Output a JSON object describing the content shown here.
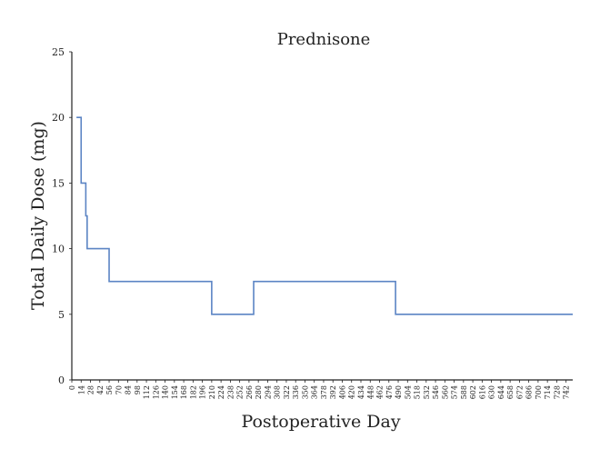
{
  "chart_data": {
    "type": "line",
    "title": "Prednisone",
    "xlabel": "Postoperative Day",
    "ylabel": "Total Daily Dose (mg)",
    "xlim": [
      0,
      752
    ],
    "ylim": [
      0,
      25
    ],
    "yticks": [
      0,
      5,
      10,
      15,
      20,
      25
    ],
    "xticks": [
      0,
      14,
      28,
      42,
      56,
      70,
      84,
      98,
      112,
      126,
      140,
      154,
      168,
      182,
      196,
      210,
      224,
      238,
      252,
      266,
      280,
      294,
      308,
      322,
      336,
      350,
      364,
      378,
      392,
      406,
      420,
      434,
      448,
      462,
      476,
      490,
      504,
      518,
      532,
      546,
      560,
      574,
      588,
      602,
      616,
      630,
      644,
      658,
      672,
      686,
      700,
      714,
      728,
      742
    ],
    "grid": false,
    "legend": "none",
    "series": [
      {
        "color": "#5b84c4",
        "step": true,
        "points": [
          [
            7,
            20
          ],
          [
            14,
            20
          ],
          [
            14,
            15
          ],
          [
            21,
            15
          ],
          [
            21,
            12.5
          ],
          [
            23,
            12.5
          ],
          [
            23,
            10
          ],
          [
            56,
            10
          ],
          [
            56,
            7.5
          ],
          [
            210,
            7.5
          ],
          [
            210,
            5
          ],
          [
            273,
            5
          ],
          [
            273,
            7.5
          ],
          [
            486,
            7.5
          ],
          [
            486,
            5
          ],
          [
            752,
            5
          ]
        ]
      }
    ]
  }
}
